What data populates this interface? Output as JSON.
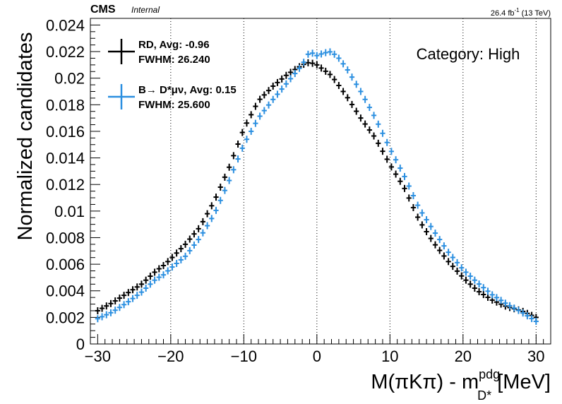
{
  "header": {
    "experiment": "CMS",
    "status": "Internal",
    "lumi": "26.4 fb",
    "lumi_exp": "-1",
    "energy": "(13 TeV)"
  },
  "category_label": "Category: High",
  "legend": [
    {
      "line1": "RD, Avg: -0.96",
      "line2": "FWHM: 26.240",
      "color": "#000000"
    },
    {
      "line1": "B→ D*μν, Avg: 0.15",
      "line2": "FWHM: 25.600",
      "color": "#2b8fe0"
    }
  ],
  "chart_data": {
    "type": "scatter",
    "ylabel": "Normalized candidates",
    "xlabel": {
      "main": "M(πKπ) - m",
      "sup": "pdg",
      "sub": "D*",
      "unit": " [MeV]"
    },
    "xlim": [
      -31,
      32
    ],
    "ylim": [
      0,
      0.0245
    ],
    "bin_width": 0.6,
    "x_ticks": [
      "−30",
      "−20",
      "−10",
      "0",
      "10",
      "20",
      "30"
    ],
    "x_tick_values": [
      -30,
      -20,
      -10,
      0,
      10,
      20,
      30
    ],
    "y_ticks": [
      "0",
      "0.002",
      "0.004",
      "0.006",
      "0.008",
      "0.01",
      "0.012",
      "0.014",
      "0.016",
      "0.018",
      "0.02",
      "0.022",
      "0.024"
    ],
    "y_tick_values": [
      0,
      0.002,
      0.004,
      0.006,
      0.008,
      0.01,
      0.012,
      0.014,
      0.016,
      0.018,
      0.02,
      0.022,
      0.024
    ],
    "grid_x": [
      -20,
      -10,
      0,
      10,
      20,
      30
    ],
    "series": [
      {
        "name": "RD, Avg: -0.96",
        "color": "#000000",
        "anchors": [
          [
            -30,
            0.0025
          ],
          [
            -28,
            0.0031
          ],
          [
            -26,
            0.0038
          ],
          [
            -24,
            0.0045
          ],
          [
            -22,
            0.0055
          ],
          [
            -21,
            0.0059
          ],
          [
            -20,
            0.0064
          ],
          [
            -18,
            0.0075
          ],
          [
            -16,
            0.0088
          ],
          [
            -14,
            0.0108
          ],
          [
            -12,
            0.0133
          ],
          [
            -10,
            0.0162
          ],
          [
            -8,
            0.0183
          ],
          [
            -6,
            0.0194
          ],
          [
            -4,
            0.0203
          ],
          [
            -2,
            0.021
          ],
          [
            -1,
            0.0212
          ],
          [
            0,
            0.021
          ],
          [
            1,
            0.0206
          ],
          [
            2,
            0.0202
          ],
          [
            4,
            0.0187
          ],
          [
            6,
            0.017
          ],
          [
            8,
            0.0155
          ],
          [
            10,
            0.0135
          ],
          [
            12,
            0.0117
          ],
          [
            14,
            0.0093
          ],
          [
            16,
            0.0076
          ],
          [
            18,
            0.0062
          ],
          [
            20,
            0.005
          ],
          [
            22,
            0.004
          ],
          [
            24,
            0.0033
          ],
          [
            26,
            0.0028
          ],
          [
            28,
            0.0025
          ],
          [
            30,
            0.002
          ]
        ]
      },
      {
        "name": "B→ D*μν, Avg: 0.15",
        "color": "#2b8fe0",
        "anchors": [
          [
            -30,
            0.0019
          ],
          [
            -28,
            0.0024
          ],
          [
            -26,
            0.0031
          ],
          [
            -24,
            0.0039
          ],
          [
            -22,
            0.0049
          ],
          [
            -21,
            0.0052
          ],
          [
            -20,
            0.0057
          ],
          [
            -18,
            0.0066
          ],
          [
            -16,
            0.008
          ],
          [
            -14,
            0.0098
          ],
          [
            -12,
            0.0123
          ],
          [
            -10,
            0.015
          ],
          [
            -8,
            0.017
          ],
          [
            -6,
            0.0184
          ],
          [
            -4,
            0.0197
          ],
          [
            -2,
            0.021
          ],
          [
            -1,
            0.022
          ],
          [
            0,
            0.0217
          ],
          [
            1,
            0.0219
          ],
          [
            2,
            0.022
          ],
          [
            3,
            0.0215
          ],
          [
            4,
            0.0208
          ],
          [
            6,
            0.019
          ],
          [
            8,
            0.017
          ],
          [
            10,
            0.0147
          ],
          [
            12,
            0.0126
          ],
          [
            14,
            0.0102
          ],
          [
            16,
            0.0085
          ],
          [
            18,
            0.0069
          ],
          [
            20,
            0.0056
          ],
          [
            22,
            0.0046
          ],
          [
            24,
            0.0037
          ],
          [
            26,
            0.003
          ],
          [
            28,
            0.0024
          ],
          [
            30,
            0.0017
          ]
        ]
      }
    ]
  }
}
